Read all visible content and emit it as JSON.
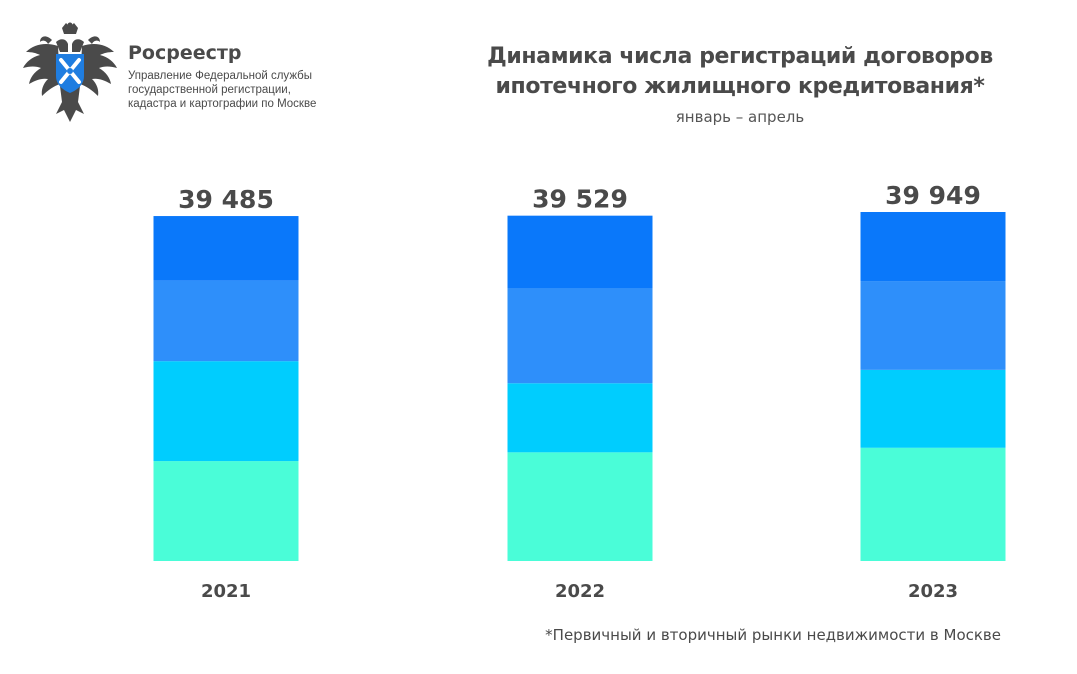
{
  "header": {
    "org_name": "Росреестр",
    "org_sub_lines": [
      "Управление Федеральной службы",
      "государственной регистрации,",
      "кадастра и картографии по Москве"
    ],
    "logo_icon": "double-headed-eagle-emblem-icon"
  },
  "colors": {
    "segment_1": "#0a78fa",
    "segment_2": "#2e8ffa",
    "segment_3": "#00cdfe",
    "segment_4": "#4afdd8",
    "text": "#4a4a4a"
  },
  "chart_data": {
    "type": "bar",
    "stacked": true,
    "title": "Динамика числа регистраций договоров ипотечного жилищного кредитования*",
    "title_lines": [
      "Динамика числа регистраций договоров",
      "ипотечного жилищного кредитования*"
    ],
    "subtitle": "январь – апрель",
    "categories": [
      "2021",
      "2022",
      "2023"
    ],
    "totals": [
      39485,
      39529,
      39949
    ],
    "total_labels": [
      "39 485",
      "39 529",
      "39 949"
    ],
    "series": [
      {
        "values": [
          7400,
          8280,
          7940
        ]
      },
      {
        "values": [
          9210,
          10900,
          10130
        ]
      },
      {
        "values": [
          11440,
          7910,
          8920
        ]
      },
      {
        "values": [
          11435,
          12439,
          12959
        ]
      }
    ],
    "xlabel": "",
    "ylabel": "",
    "ylim": [
      0,
      39949
    ],
    "grid": false,
    "legend": "none",
    "footnote": "*Первичный и вторичный рынки недвижимости в Москве"
  }
}
